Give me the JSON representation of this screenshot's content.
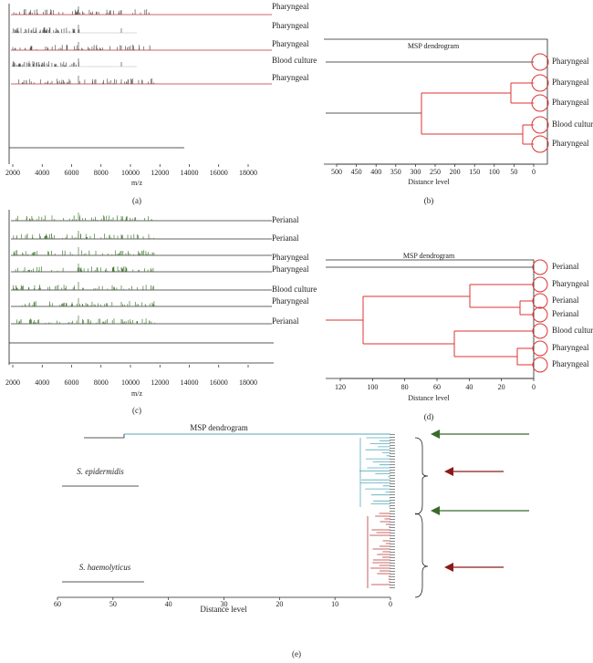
{
  "panel_a": {
    "x_axis_label": "m/z",
    "x_ticks": [
      "2000",
      "4000",
      "6000",
      "8000",
      "10000",
      "12000",
      "14000",
      "16000",
      "18000"
    ],
    "labels": [
      "Pharyngeal",
      "Pharyngeal",
      "Pharyngeal",
      "Blood culture",
      "Pharyngeal"
    ],
    "caption": "(a)"
  },
  "panel_b": {
    "title": "MSP dendrogram",
    "x_axis_label": "Distance level",
    "x_ticks": [
      "500",
      "450",
      "400",
      "350",
      "300",
      "250",
      "200",
      "150",
      "100",
      "50",
      "0"
    ],
    "labels": [
      "Pharyngeal",
      "Pharyngeal",
      "Pharyngeal",
      "Blood culture",
      "Pharyngeal"
    ],
    "caption": "(b)"
  },
  "panel_c": {
    "x_axis_label": "m/z",
    "x_ticks": [
      "2000",
      "4000",
      "6000",
      "8000",
      "10000",
      "12000",
      "14000",
      "16000",
      "18000"
    ],
    "labels": [
      "Perianal",
      "Perianal",
      "Pharyngeal",
      "Pharyngeal",
      "Blood culture",
      "Pharyngeal",
      "Perianal"
    ],
    "caption": "(c)"
  },
  "panel_d": {
    "title": "MSP dendrogram",
    "x_axis_label": "Distance level",
    "x_ticks": [
      "120",
      "100",
      "80",
      "60",
      "40",
      "20",
      "0"
    ],
    "labels": [
      "Perianal",
      "Pharyngeal",
      "Perianal",
      "Perianal",
      "Blood culture",
      "Pharyngeal",
      "Pharyngeal"
    ],
    "caption": "(d)"
  },
  "panel_e": {
    "title": "MSP dendrogram",
    "x_axis_label": "Distance level",
    "x_ticks": [
      "60",
      "50",
      "40",
      "30",
      "20",
      "10",
      "0"
    ],
    "group_labels": [
      "S. epidermidis",
      "S. haemolyticus"
    ],
    "caption": "(e)"
  }
}
